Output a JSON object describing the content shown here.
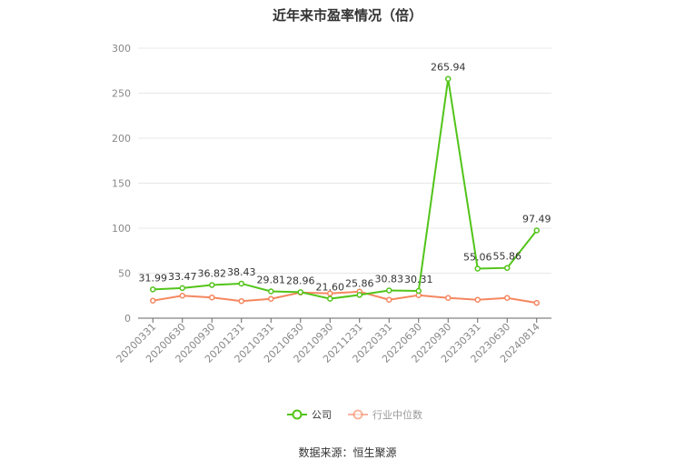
{
  "chart_data": {
    "type": "line",
    "title": "近年来市盈率情况（倍）",
    "categories": [
      "20200331",
      "20200630",
      "20200930",
      "20201231",
      "20210331",
      "20210630",
      "20210930",
      "20211231",
      "20220331",
      "20220630",
      "20220930",
      "20230331",
      "20230630",
      "20240814"
    ],
    "ylim": [
      0,
      300
    ],
    "yticks": [
      0,
      50,
      100,
      150,
      200,
      250,
      300
    ],
    "grid": true,
    "legend_position": "bottom",
    "series": [
      {
        "name": "公司",
        "color": "#52c41a",
        "values": [
          31.99,
          33.47,
          36.82,
          38.43,
          29.81,
          28.96,
          21.6,
          25.86,
          30.83,
          30.31,
          265.94,
          55.06,
          55.86,
          97.49
        ],
        "labels": [
          "31.99",
          "33.47",
          "36.82",
          "38.43",
          "29.81",
          "28.96",
          "21.60",
          "25.86",
          "30.83",
          "30.31",
          "265.94",
          "55.06",
          "55.86",
          "97.49"
        ]
      },
      {
        "name": "行业中位数",
        "color": "#f5875f",
        "values": [
          19.5,
          25.0,
          23.0,
          19.0,
          21.5,
          28.5,
          27.5,
          29.5,
          20.5,
          25.5,
          22.5,
          20.5,
          22.5,
          17.0
        ]
      }
    ]
  },
  "footer": {
    "source": "数据来源：恒生聚源"
  }
}
